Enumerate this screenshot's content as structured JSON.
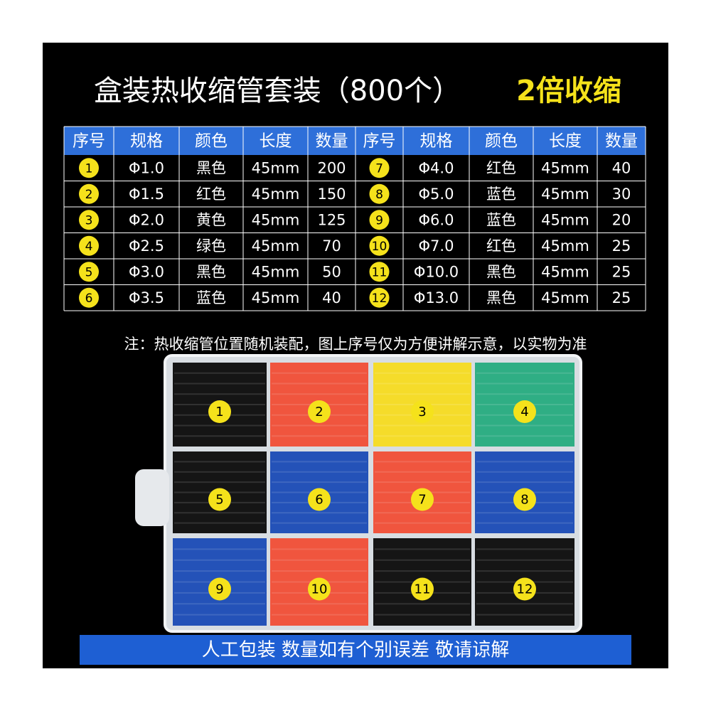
{
  "header": {
    "title": "盒装热收缩管套装（800个）",
    "highlight": "2倍收缩"
  },
  "table": {
    "headers": [
      "序号",
      "规格",
      "颜色",
      "长度",
      "数量",
      "序号",
      "规格",
      "颜色",
      "长度",
      "数量"
    ],
    "rows": [
      [
        "1",
        "Φ1.0",
        "黑色",
        "45mm",
        200,
        "7",
        "Φ4.0",
        "红色",
        "45mm",
        40
      ],
      [
        "2",
        "Φ1.5",
        "红色",
        "45mm",
        150,
        "8",
        "Φ5.0",
        "蓝色",
        "45mm",
        30
      ],
      [
        "3",
        "Φ2.0",
        "黄色",
        "45mm",
        125,
        "9",
        "Φ6.0",
        "蓝色",
        "45mm",
        20
      ],
      [
        "4",
        "Φ2.5",
        "绿色",
        "45mm",
        70,
        "10",
        "Φ7.0",
        "红色",
        "45mm",
        25
      ],
      [
        "5",
        "Φ3.0",
        "黑色",
        "45mm",
        50,
        "11",
        "Φ10.0",
        "黑色",
        "45mm",
        25
      ],
      [
        "6",
        "Φ3.5",
        "蓝色",
        "45mm",
        40,
        "12",
        "Φ13.0",
        "黑色",
        "45mm",
        25
      ]
    ]
  },
  "note": "注：热收缩管位置随机装配，图上序号仅为方便讲解示意，以实物为准",
  "box": {
    "cells": [
      {
        "label": "1",
        "color": "#151515"
      },
      {
        "label": "2",
        "color": "#f0553e"
      },
      {
        "label": "3",
        "color": "#f5dc2a"
      },
      {
        "label": "4",
        "color": "#2fae84"
      },
      {
        "label": "5",
        "color": "#151515"
      },
      {
        "label": "6",
        "color": "#2452b8"
      },
      {
        "label": "7",
        "color": "#f0553e"
      },
      {
        "label": "8",
        "color": "#2452b8"
      },
      {
        "label": "9",
        "color": "#2452b8"
      },
      {
        "label": "10",
        "color": "#f0553e"
      },
      {
        "label": "11",
        "color": "#151515"
      },
      {
        "label": "12",
        "color": "#151515"
      }
    ]
  },
  "footer": {
    "banner": "人工包装 数量如有个别误差 敬请谅解"
  }
}
